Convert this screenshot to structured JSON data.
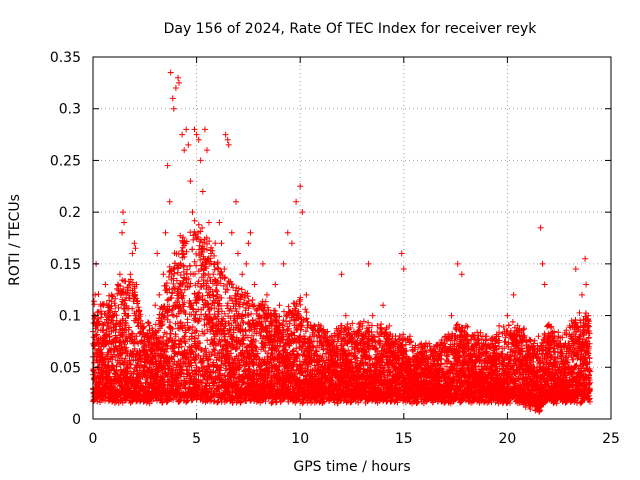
{
  "chart_data": {
    "type": "scatter",
    "title": "Day 156 of 2024, Rate Of TEC Index for receiver reyk",
    "xlabel": "GPS time / hours",
    "ylabel": "ROTI / TECUs",
    "xlim": [
      0,
      25
    ],
    "ylim": [
      0,
      0.35
    ],
    "xticks": [
      0,
      5,
      10,
      15,
      20,
      25
    ],
    "xtick_labels": [
      "0",
      "5",
      "10",
      "15",
      "20",
      "25"
    ],
    "yticks": [
      0,
      0.05,
      0.1,
      0.15,
      0.2,
      0.25,
      0.3,
      0.35
    ],
    "ytick_labels": [
      "0",
      "0.05",
      "0.1",
      "0.15",
      "0.2",
      "0.25",
      "0.3",
      "0.35"
    ],
    "grid": true,
    "marker": "+",
    "series": [
      {
        "name": "ROTI",
        "color": "#ff0000",
        "points": [
          [
            0.0,
            0.06
          ],
          [
            0.1,
            0.12
          ],
          [
            0.15,
            0.15
          ],
          [
            0.2,
            0.09
          ],
          [
            0.3,
            0.05
          ],
          [
            0.4,
            0.07
          ],
          [
            0.5,
            0.11
          ],
          [
            0.6,
            0.13
          ],
          [
            0.7,
            0.04
          ],
          [
            0.8,
            0.08
          ],
          [
            0.9,
            0.12
          ],
          [
            1.0,
            0.1
          ],
          [
            1.1,
            0.06
          ],
          [
            1.2,
            0.13
          ],
          [
            1.3,
            0.14
          ],
          [
            1.4,
            0.18
          ],
          [
            1.45,
            0.2
          ],
          [
            1.5,
            0.19
          ],
          [
            1.6,
            0.12
          ],
          [
            1.7,
            0.1
          ],
          [
            1.8,
            0.14
          ],
          [
            1.9,
            0.16
          ],
          [
            2.0,
            0.17
          ],
          [
            2.05,
            0.165
          ],
          [
            2.1,
            0.13
          ],
          [
            2.2,
            0.09
          ],
          [
            2.4,
            0.06
          ],
          [
            2.6,
            0.05
          ],
          [
            2.8,
            0.04
          ],
          [
            3.0,
            0.11
          ],
          [
            3.1,
            0.16
          ],
          [
            3.2,
            0.12
          ],
          [
            3.4,
            0.14
          ],
          [
            3.5,
            0.18
          ],
          [
            3.6,
            0.245
          ],
          [
            3.7,
            0.21
          ],
          [
            3.75,
            0.335
          ],
          [
            3.85,
            0.31
          ],
          [
            3.9,
            0.3
          ],
          [
            4.0,
            0.32
          ],
          [
            4.1,
            0.33
          ],
          [
            4.15,
            0.325
          ],
          [
            4.3,
            0.275
          ],
          [
            4.4,
            0.26
          ],
          [
            4.5,
            0.28
          ],
          [
            4.6,
            0.265
          ],
          [
            4.7,
            0.23
          ],
          [
            4.8,
            0.2
          ],
          [
            4.9,
            0.28
          ],
          [
            5.0,
            0.275
          ],
          [
            5.1,
            0.27
          ],
          [
            5.2,
            0.25
          ],
          [
            5.3,
            0.22
          ],
          [
            5.4,
            0.28
          ],
          [
            5.5,
            0.26
          ],
          [
            5.6,
            0.19
          ],
          [
            5.7,
            0.16
          ],
          [
            5.8,
            0.14
          ],
          [
            5.9,
            0.17
          ],
          [
            6.0,
            0.15
          ],
          [
            6.1,
            0.19
          ],
          [
            6.2,
            0.17
          ],
          [
            6.4,
            0.275
          ],
          [
            6.5,
            0.27
          ],
          [
            6.55,
            0.265
          ],
          [
            6.7,
            0.18
          ],
          [
            6.9,
            0.21
          ],
          [
            7.0,
            0.16
          ],
          [
            7.2,
            0.14
          ],
          [
            7.4,
            0.15
          ],
          [
            7.5,
            0.17
          ],
          [
            7.6,
            0.18
          ],
          [
            7.8,
            0.13
          ],
          [
            8.0,
            0.11
          ],
          [
            8.2,
            0.15
          ],
          [
            8.4,
            0.12
          ],
          [
            8.6,
            0.09
          ],
          [
            8.8,
            0.13
          ],
          [
            9.0,
            0.11
          ],
          [
            9.2,
            0.15
          ],
          [
            9.4,
            0.18
          ],
          [
            9.6,
            0.17
          ],
          [
            9.8,
            0.21
          ],
          [
            10.0,
            0.225
          ],
          [
            10.1,
            0.2
          ],
          [
            10.3,
            0.12
          ],
          [
            10.5,
            0.09
          ],
          [
            10.8,
            0.08
          ],
          [
            11.0,
            0.09
          ],
          [
            11.5,
            0.08
          ],
          [
            12.0,
            0.14
          ],
          [
            12.2,
            0.1
          ],
          [
            12.5,
            0.07
          ],
          [
            12.8,
            0.08
          ],
          [
            13.0,
            0.09
          ],
          [
            13.3,
            0.15
          ],
          [
            13.5,
            0.1
          ],
          [
            13.8,
            0.08
          ],
          [
            14.0,
            0.11
          ],
          [
            14.3,
            0.09
          ],
          [
            14.6,
            0.08
          ],
          [
            14.9,
            0.16
          ],
          [
            15.0,
            0.145
          ],
          [
            15.3,
            0.08
          ],
          [
            15.6,
            0.06
          ],
          [
            16.0,
            0.07
          ],
          [
            16.5,
            0.06
          ],
          [
            17.0,
            0.08
          ],
          [
            17.3,
            0.1
          ],
          [
            17.6,
            0.15
          ],
          [
            17.8,
            0.14
          ],
          [
            18.0,
            0.09
          ],
          [
            18.3,
            0.07
          ],
          [
            18.6,
            0.06
          ],
          [
            19.0,
            0.08
          ],
          [
            19.3,
            0.07
          ],
          [
            19.6,
            0.09
          ],
          [
            20.0,
            0.1
          ],
          [
            20.3,
            0.12
          ],
          [
            20.6,
            0.08
          ],
          [
            21.0,
            0.06
          ],
          [
            21.3,
            0.05
          ],
          [
            21.5,
            0.08
          ],
          [
            21.6,
            0.185
          ],
          [
            21.7,
            0.15
          ],
          [
            21.8,
            0.13
          ],
          [
            22.0,
            0.08
          ],
          [
            22.3,
            0.06
          ],
          [
            22.6,
            0.07
          ],
          [
            23.0,
            0.09
          ],
          [
            23.3,
            0.145
          ],
          [
            23.6,
            0.12
          ],
          [
            23.75,
            0.155
          ],
          [
            23.8,
            0.13
          ],
          [
            23.9,
            0.1
          ]
        ],
        "trend": {
          "x": [
            0,
            0.5,
            1,
            1.5,
            2,
            2.5,
            3,
            3.5,
            4,
            4.5,
            5,
            5.5,
            6,
            6.5,
            7,
            7.5,
            8,
            8.5,
            9,
            9.5,
            10,
            10.5,
            11,
            11.5,
            12,
            12.5,
            13,
            13.5,
            14,
            14.5,
            15,
            15.5,
            16,
            16.5,
            17,
            17.5,
            18,
            18.5,
            19,
            19.5,
            20,
            20.5,
            21,
            21.5,
            22,
            22.5,
            23,
            23.5,
            24
          ],
          "hi": [
            0.13,
            0.11,
            0.12,
            0.14,
            0.13,
            0.09,
            0.09,
            0.13,
            0.17,
            0.18,
            0.19,
            0.18,
            0.15,
            0.14,
            0.13,
            0.12,
            0.11,
            0.11,
            0.1,
            0.11,
            0.12,
            0.09,
            0.09,
            0.08,
            0.09,
            0.09,
            0.09,
            0.09,
            0.09,
            0.08,
            0.08,
            0.07,
            0.07,
            0.07,
            0.08,
            0.09,
            0.09,
            0.08,
            0.08,
            0.08,
            0.09,
            0.09,
            0.08,
            0.07,
            0.09,
            0.08,
            0.09,
            0.1,
            0.1
          ],
          "lo": [
            0.02,
            0.02,
            0.02,
            0.02,
            0.02,
            0.02,
            0.02,
            0.02,
            0.02,
            0.02,
            0.02,
            0.02,
            0.02,
            0.02,
            0.02,
            0.02,
            0.02,
            0.02,
            0.02,
            0.02,
            0.02,
            0.02,
            0.02,
            0.02,
            0.02,
            0.02,
            0.02,
            0.02,
            0.02,
            0.02,
            0.02,
            0.02,
            0.02,
            0.02,
            0.02,
            0.02,
            0.02,
            0.02,
            0.02,
            0.02,
            0.02,
            0.02,
            0.015,
            0.01,
            0.02,
            0.02,
            0.02,
            0.02,
            0.02
          ]
        }
      }
    ]
  }
}
